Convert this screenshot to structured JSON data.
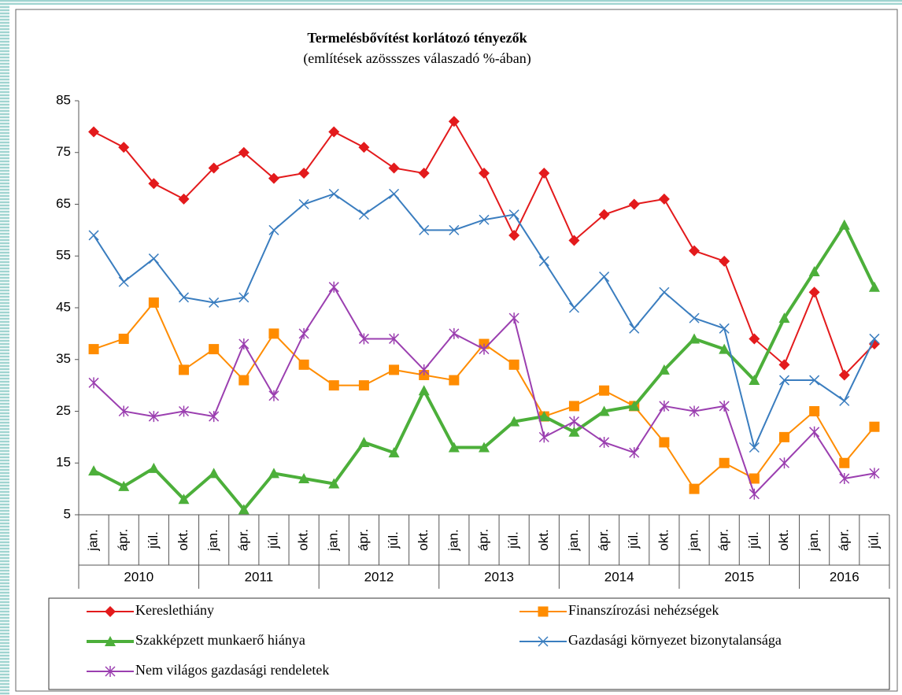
{
  "chart_data": {
    "type": "line",
    "title": "Termelésbővítést korlátozó tényezők",
    "subtitle": "(említések azössszes válaszadó %-ában)",
    "categories": [
      "jan.",
      "ápr.",
      "júl.",
      "okt.",
      "jan.",
      "ápr.",
      "júl.",
      "okt.",
      "jan.",
      "ápr.",
      "júl.",
      "okt.",
      "jan.",
      "ápr.",
      "júl.",
      "okt.",
      "jan.",
      "ápr.",
      "júl.",
      "okt.",
      "jan.",
      "ápr.",
      "júl.",
      "okt.",
      "jan.",
      "ápr.",
      "júl."
    ],
    "year_groups": [
      "2010",
      "2011",
      "2012",
      "2013",
      "2014",
      "2015",
      "2016"
    ],
    "series": [
      {
        "name": "Kereslethiány",
        "color": "#e31a1c",
        "marker": "diamond",
        "values": [
          79,
          76,
          69,
          66,
          72,
          75,
          70,
          71,
          79,
          76,
          72,
          71,
          81,
          71,
          59,
          71,
          58,
          63,
          65,
          66,
          56,
          54,
          39,
          34,
          48,
          32,
          38
        ]
      },
      {
        "name": "Finanszírozási nehézségek",
        "color": "#ff8c00",
        "marker": "square",
        "values": [
          37,
          39,
          46,
          33,
          37,
          31,
          40,
          34,
          30,
          30,
          33,
          32,
          31,
          38,
          34,
          24,
          26,
          29,
          26,
          19,
          10,
          15,
          12,
          20,
          25,
          15,
          22
        ]
      },
      {
        "name": "Szakképzett munkaerő hiánya",
        "color": "#4caf3a",
        "marker": "triangle",
        "values": [
          13.5,
          10.5,
          14,
          8,
          13,
          6,
          13,
          12,
          11,
          19,
          17,
          29,
          18,
          18,
          23,
          24,
          21,
          25,
          26,
          33,
          39,
          37,
          31,
          43,
          52,
          61,
          49
        ]
      },
      {
        "name": "Gazdasági környezet bizonytalansága",
        "color": "#3a7dbf",
        "marker": "x",
        "values": [
          59,
          50,
          54.5,
          47,
          46,
          47,
          60,
          65,
          67,
          63,
          67,
          60,
          60,
          62,
          63,
          54,
          45,
          51,
          41,
          48,
          43,
          41,
          18,
          31,
          31,
          27,
          39
        ]
      },
      {
        "name": "Nem világos gazdasági rendeletek",
        "color": "#9b3fb0",
        "marker": "star",
        "values": [
          30.5,
          25,
          24,
          25,
          24,
          38,
          28,
          40,
          49,
          39,
          39,
          33,
          40,
          37,
          43,
          20,
          23,
          19,
          17,
          26,
          25,
          26,
          9,
          15,
          21,
          12,
          13
        ]
      }
    ],
    "ylim": [
      5,
      85
    ],
    "yticks": [
      5,
      15,
      25,
      35,
      45,
      55,
      65,
      75,
      85
    ],
    "grid": false
  }
}
